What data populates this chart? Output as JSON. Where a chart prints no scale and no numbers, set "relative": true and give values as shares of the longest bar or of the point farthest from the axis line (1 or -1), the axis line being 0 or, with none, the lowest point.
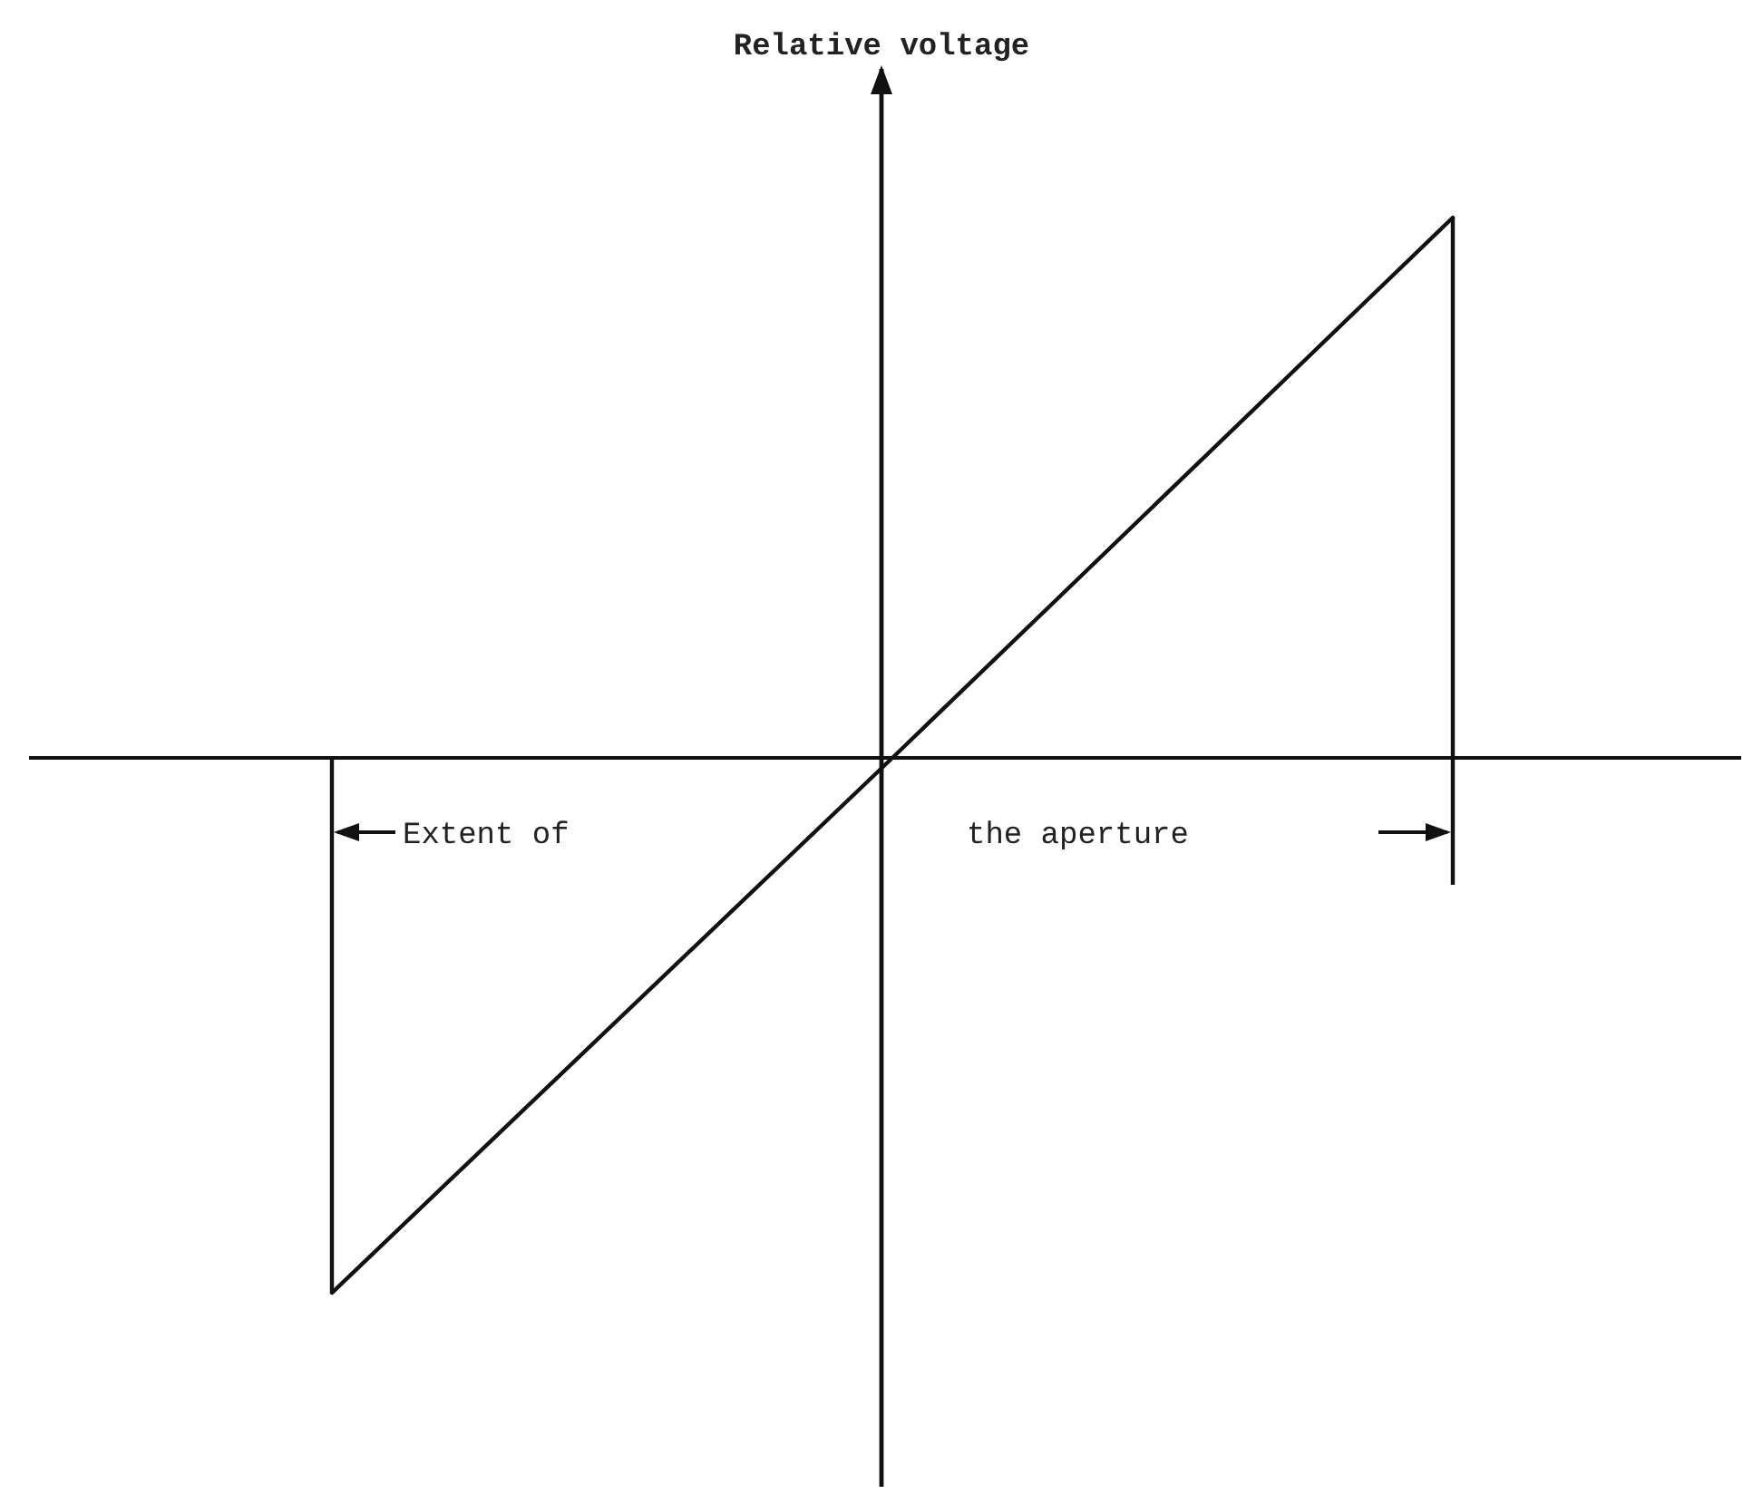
{
  "chart_data": {
    "type": "line",
    "relative": true,
    "ylabel": "Relative voltage",
    "categories": [
      null,
      null,
      null
    ],
    "series": [
      {
        "color": "#111111",
        "values": [
          -0.99,
          0,
          1
        ]
      }
    ],
    "annotations": [
      "Extent of",
      "the aperture"
    ],
    "grid": false,
    "marker": "none",
    "line_style": "solid"
  }
}
